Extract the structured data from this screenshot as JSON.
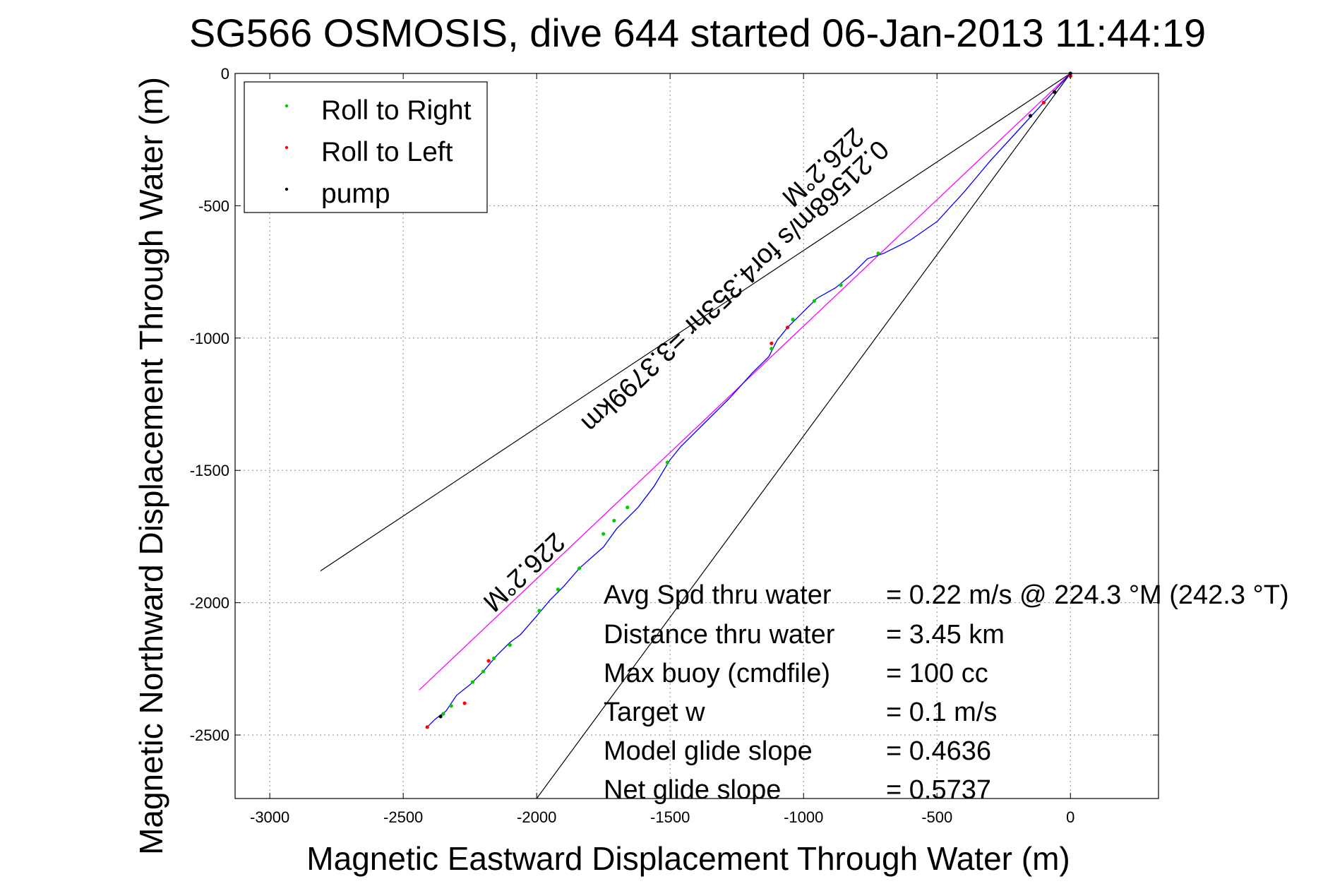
{
  "chart_data": {
    "type": "line",
    "title": "SG566 OSMOSIS, dive 644 started 06-Jan-2013 11:44:19",
    "xlabel": "Magnetic Eastward Displacement Through Water (m)",
    "ylabel": "Magnetic Northward Displacement Through Water (m)",
    "xlim": [
      -3130,
      330
    ],
    "ylim": [
      -2740,
      0
    ],
    "xticks": [
      -3000,
      -2500,
      -2000,
      -1500,
      -1000,
      -500,
      0
    ],
    "yticks": [
      0,
      -500,
      -1000,
      -1500,
      -2000,
      -2500
    ],
    "grid": true,
    "legend_position": "top-left",
    "legend": [
      {
        "label": "Roll to Right",
        "color": "#00cc00"
      },
      {
        "label": "Roll to Left",
        "color": "#ff0000"
      },
      {
        "label": "pump",
        "color": "#000000"
      }
    ],
    "track": {
      "color": "#0000ff",
      "points": [
        [
          0,
          0
        ],
        [
          -100,
          -110
        ],
        [
          -200,
          -220
        ],
        [
          -300,
          -330
        ],
        [
          -400,
          -450
        ],
        [
          -500,
          -560
        ],
        [
          -600,
          -630
        ],
        [
          -700,
          -680
        ],
        [
          -760,
          -700
        ],
        [
          -820,
          -760
        ],
        [
          -880,
          -810
        ],
        [
          -950,
          -850
        ],
        [
          -1000,
          -900
        ],
        [
          -1060,
          -960
        ],
        [
          -1100,
          -1010
        ],
        [
          -1130,
          -1070
        ],
        [
          -1190,
          -1130
        ],
        [
          -1280,
          -1230
        ],
        [
          -1380,
          -1330
        ],
        [
          -1460,
          -1410
        ],
        [
          -1500,
          -1460
        ],
        [
          -1560,
          -1560
        ],
        [
          -1620,
          -1640
        ],
        [
          -1700,
          -1720
        ],
        [
          -1750,
          -1790
        ],
        [
          -1840,
          -1870
        ],
        [
          -1900,
          -1940
        ],
        [
          -1950,
          -1990
        ],
        [
          -2000,
          -2050
        ],
        [
          -2060,
          -2120
        ],
        [
          -2100,
          -2150
        ],
        [
          -2150,
          -2200
        ],
        [
          -2200,
          -2260
        ],
        [
          -2250,
          -2310
        ],
        [
          -2300,
          -2350
        ],
        [
          -2340,
          -2410
        ],
        [
          -2380,
          -2440
        ],
        [
          -2410,
          -2470
        ]
      ]
    },
    "markers": {
      "roll_right": [
        [
          -720,
          -680
        ],
        [
          -860,
          -800
        ],
        [
          -960,
          -860
        ],
        [
          -1040,
          -930
        ],
        [
          -1120,
          -1040
        ],
        [
          -1510,
          -1470
        ],
        [
          -1660,
          -1640
        ],
        [
          -1710,
          -1690
        ],
        [
          -1750,
          -1740
        ],
        [
          -1840,
          -1870
        ],
        [
          -1920,
          -1950
        ],
        [
          -1990,
          -2030
        ],
        [
          -2100,
          -2160
        ],
        [
          -2160,
          -2210
        ],
        [
          -2200,
          -2260
        ],
        [
          -2240,
          -2300
        ],
        [
          -2320,
          -2390
        ],
        [
          -2350,
          -2420
        ]
      ],
      "roll_left": [
        [
          0,
          -10
        ],
        [
          -100,
          -110
        ],
        [
          -1060,
          -960
        ],
        [
          -1120,
          -1020
        ],
        [
          -2180,
          -2220
        ],
        [
          -2270,
          -2380
        ],
        [
          -2410,
          -2470
        ]
      ],
      "pump": [
        [
          0,
          0
        ],
        [
          -60,
          -70
        ],
        [
          -150,
          -160
        ],
        [
          -2360,
          -2430
        ]
      ]
    },
    "heading_line": {
      "color": "#ff00ff",
      "from": [
        0,
        0
      ],
      "to": [
        -2440,
        -2330
      ]
    },
    "envelope_lines": {
      "color": "#000000",
      "lines": [
        {
          "from": [
            0,
            0
          ],
          "to": [
            -2810,
            -1880
          ]
        },
        {
          "from": [
            0,
            0
          ],
          "to": [
            -2000,
            -2740
          ]
        }
      ]
    },
    "annotations": [
      {
        "text": "226.2°M",
        "at": [
          -950,
          -330
        ]
      },
      {
        "text": "0.21568m/s for4.353hr =3.3799km",
        "at": [
          -1280,
          -780
        ]
      },
      {
        "text": "226.2°M",
        "at": [
          -2070,
          -1860
        ]
      }
    ],
    "stats": [
      {
        "label": "Avg Spd thru water",
        "value": "=  0.22 m/s @ 224.3 °M (242.3 °T)"
      },
      {
        "label": "Distance thru water",
        "value": "=  3.45 km"
      },
      {
        "label": "Max buoy (cmdfile)",
        "value": "= 100 cc"
      },
      {
        "label": "Target w",
        "value": "= 0.1 m/s"
      },
      {
        "label": "Model glide slope",
        "value": "= 0.4636"
      },
      {
        "label": "Net glide slope",
        "value": "= 0.5737"
      }
    ]
  }
}
